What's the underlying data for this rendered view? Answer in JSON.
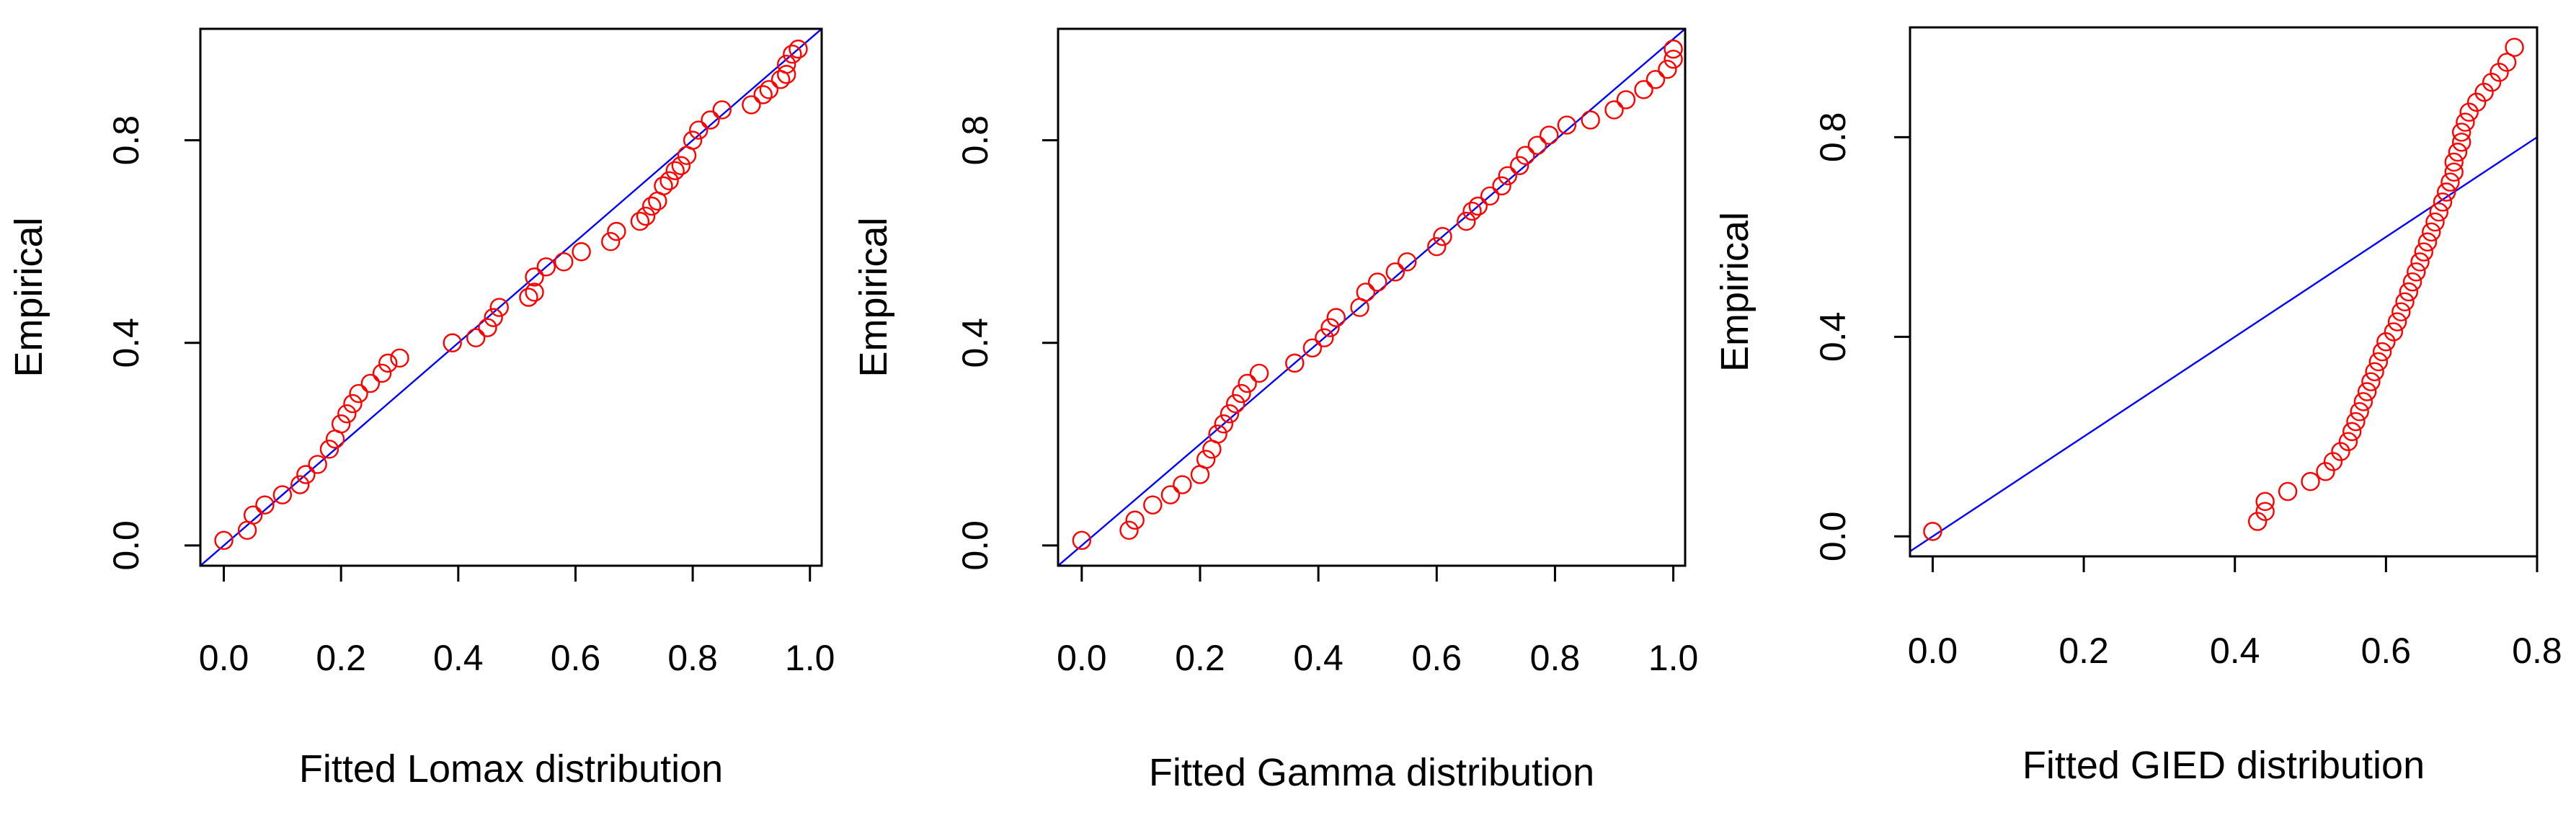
{
  "chart_data": [
    {
      "type": "scatter",
      "xlabel": "Fitted Lomax distribution",
      "ylabel": "Empirical",
      "xticks": [
        "0.0",
        "0.2",
        "0.4",
        "0.6",
        "0.8",
        "1.0"
      ],
      "yticks": [
        "0.0",
        "0.4",
        "0.8"
      ],
      "xlim": [
        -0.04,
        1.02
      ],
      "ylim": [
        -0.04,
        1.02
      ],
      "grid": false,
      "point_color": "#ff0000",
      "line_color": "#0000ff",
      "reference_line": {
        "slope": 1,
        "intercept": 0
      },
      "series": [
        {
          "x": [
            0.0,
            0.04,
            0.05,
            0.07,
            0.1,
            0.13,
            0.14,
            0.16,
            0.18,
            0.19,
            0.2,
            0.21,
            0.22,
            0.23,
            0.25,
            0.27,
            0.28,
            0.3,
            0.39,
            0.43,
            0.45,
            0.46,
            0.47,
            0.52,
            0.53,
            0.53,
            0.55,
            0.58,
            0.61,
            0.66,
            0.67,
            0.71,
            0.72,
            0.73,
            0.74,
            0.75,
            0.76,
            0.77,
            0.78,
            0.79,
            0.8,
            0.81,
            0.83,
            0.85,
            0.9,
            0.92,
            0.93,
            0.95,
            0.96,
            0.96,
            0.97,
            0.98
          ],
          "y": [
            0.01,
            0.03,
            0.06,
            0.08,
            0.1,
            0.12,
            0.14,
            0.16,
            0.19,
            0.21,
            0.24,
            0.26,
            0.28,
            0.3,
            0.32,
            0.34,
            0.36,
            0.37,
            0.4,
            0.41,
            0.43,
            0.45,
            0.47,
            0.49,
            0.5,
            0.53,
            0.55,
            0.56,
            0.58,
            0.6,
            0.62,
            0.64,
            0.65,
            0.67,
            0.68,
            0.71,
            0.72,
            0.74,
            0.75,
            0.77,
            0.8,
            0.82,
            0.84,
            0.86,
            0.87,
            0.89,
            0.9,
            0.92,
            0.93,
            0.95,
            0.97,
            0.98
          ]
        }
      ]
    },
    {
      "type": "scatter",
      "xlabel": "Fitted Gamma distribution",
      "ylabel": "Empirical",
      "xticks": [
        "0.0",
        "0.2",
        "0.4",
        "0.6",
        "0.8",
        "1.0"
      ],
      "yticks": [
        "0.0",
        "0.4",
        "0.8"
      ],
      "xlim": [
        -0.04,
        1.02
      ],
      "ylim": [
        -0.04,
        1.02
      ],
      "grid": false,
      "point_color": "#ff0000",
      "line_color": "#0000ff",
      "reference_line": {
        "slope": 1,
        "intercept": 0
      },
      "series": [
        {
          "x": [
            0.0,
            0.08,
            0.09,
            0.12,
            0.15,
            0.17,
            0.2,
            0.21,
            0.22,
            0.23,
            0.24,
            0.25,
            0.26,
            0.27,
            0.28,
            0.3,
            0.36,
            0.39,
            0.41,
            0.42,
            0.43,
            0.47,
            0.48,
            0.5,
            0.53,
            0.55,
            0.6,
            0.61,
            0.65,
            0.66,
            0.67,
            0.69,
            0.71,
            0.72,
            0.74,
            0.75,
            0.77,
            0.79,
            0.82,
            0.86,
            0.9,
            0.92,
            0.95,
            0.97,
            0.99,
            1.0,
            1.0
          ],
          "y": [
            0.01,
            0.03,
            0.05,
            0.08,
            0.1,
            0.12,
            0.14,
            0.17,
            0.19,
            0.22,
            0.24,
            0.26,
            0.28,
            0.3,
            0.32,
            0.34,
            0.36,
            0.39,
            0.41,
            0.43,
            0.45,
            0.47,
            0.5,
            0.52,
            0.54,
            0.56,
            0.59,
            0.61,
            0.64,
            0.66,
            0.67,
            0.69,
            0.71,
            0.73,
            0.75,
            0.77,
            0.79,
            0.81,
            0.83,
            0.84,
            0.86,
            0.88,
            0.9,
            0.92,
            0.94,
            0.96,
            0.98
          ]
        }
      ]
    },
    {
      "type": "scatter",
      "xlabel": "Fitted GIED distribution",
      "ylabel": "Empirical",
      "xticks": [
        "0.0",
        "0.2",
        "0.4",
        "0.6",
        "0.8"
      ],
      "yticks": [
        "0.0",
        "0.4",
        "0.8"
      ],
      "xlim": [
        -0.03,
        0.8
      ],
      "ylim": [
        -0.04,
        1.02
      ],
      "grid": false,
      "point_color": "#ff0000",
      "line_color": "#0000ff",
      "reference_line": {
        "slope": 1,
        "intercept": 0
      },
      "series": [
        {
          "x": [
            0.0,
            0.43,
            0.44,
            0.44,
            0.47,
            0.5,
            0.52,
            0.53,
            0.54,
            0.55,
            0.555,
            0.56,
            0.565,
            0.57,
            0.575,
            0.58,
            0.585,
            0.59,
            0.595,
            0.6,
            0.61,
            0.615,
            0.62,
            0.625,
            0.63,
            0.635,
            0.64,
            0.645,
            0.65,
            0.655,
            0.66,
            0.665,
            0.67,
            0.675,
            0.68,
            0.685,
            0.69,
            0.69,
            0.695,
            0.7,
            0.7,
            0.705,
            0.71,
            0.72,
            0.73,
            0.74,
            0.75,
            0.76,
            0.77
          ],
          "y": [
            0.01,
            0.03,
            0.05,
            0.07,
            0.09,
            0.11,
            0.13,
            0.15,
            0.17,
            0.19,
            0.21,
            0.23,
            0.25,
            0.27,
            0.29,
            0.31,
            0.33,
            0.35,
            0.37,
            0.39,
            0.41,
            0.43,
            0.45,
            0.47,
            0.49,
            0.51,
            0.53,
            0.55,
            0.57,
            0.59,
            0.61,
            0.63,
            0.65,
            0.67,
            0.69,
            0.71,
            0.73,
            0.75,
            0.77,
            0.79,
            0.81,
            0.83,
            0.85,
            0.87,
            0.89,
            0.91,
            0.93,
            0.95,
            0.98
          ]
        }
      ]
    }
  ]
}
